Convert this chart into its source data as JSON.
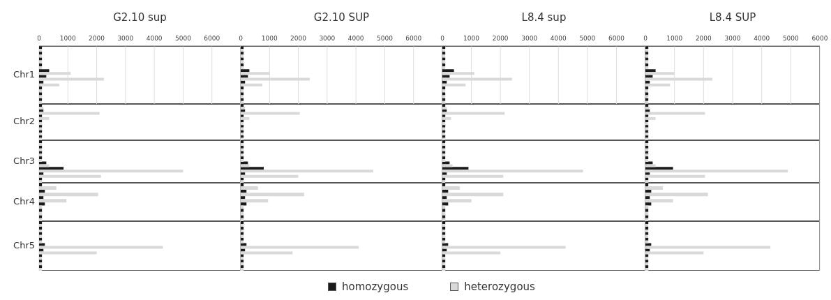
{
  "chart_data": [
    {
      "type": "bar",
      "orientation": "horizontal",
      "title": "G2.10 sup",
      "ylabel": "Chr1",
      "categories": [
        null,
        null,
        null,
        null,
        null,
        null,
        null,
        null,
        null,
        null
      ],
      "series": [
        {
          "color": "#1a1a1a",
          "values": [
            100,
            100,
            100,
            100,
            350,
            250,
            150,
            100,
            100,
            100
          ]
        },
        {
          "color": "#d9d9d9",
          "values": [
            100,
            100,
            100,
            100,
            1100,
            2250,
            700,
            100,
            100,
            100
          ]
        }
      ],
      "xlim": [
        0,
        7000
      ],
      "xticks": [
        0,
        1000,
        2000,
        3000,
        4000,
        5000,
        6000
      ],
      "grid": "x",
      "tick_labels": "x"
    },
    {
      "type": "bar",
      "orientation": "horizontal",
      "title": "G2.10 SUP",
      "categories": [
        null,
        null,
        null,
        null,
        null,
        null,
        null,
        null,
        null,
        null
      ],
      "series": [
        {
          "color": "#1a1a1a",
          "values": [
            100,
            100,
            100,
            100,
            300,
            250,
            150,
            100,
            100,
            100
          ]
        },
        {
          "color": "#d9d9d9",
          "values": [
            100,
            100,
            100,
            100,
            1000,
            2400,
            750,
            100,
            100,
            100
          ]
        }
      ],
      "xlim": [
        0,
        7000
      ],
      "xticks": [
        0,
        1000,
        2000,
        3000,
        4000,
        5000,
        6000
      ],
      "grid": "x",
      "tick_labels": "x"
    },
    {
      "type": "bar",
      "orientation": "horizontal",
      "title": "L8.4 sup",
      "categories": [
        null,
        null,
        null,
        null,
        null,
        null,
        null,
        null,
        null,
        null
      ],
      "series": [
        {
          "color": "#1a1a1a",
          "values": [
            100,
            100,
            100,
            100,
            400,
            250,
            150,
            100,
            100,
            100
          ]
        },
        {
          "color": "#d9d9d9",
          "values": [
            100,
            100,
            100,
            100,
            1100,
            2400,
            800,
            100,
            100,
            100
          ]
        }
      ],
      "xlim": [
        0,
        7000
      ],
      "xticks": [
        0,
        1000,
        2000,
        3000,
        4000,
        5000,
        6000
      ],
      "grid": "x",
      "tick_labels": "x"
    },
    {
      "type": "bar",
      "orientation": "horizontal",
      "title": "L8.4 SUP",
      "categories": [
        null,
        null,
        null,
        null,
        null,
        null,
        null,
        null,
        null,
        null
      ],
      "series": [
        {
          "color": "#1a1a1a",
          "values": [
            100,
            100,
            100,
            100,
            350,
            250,
            150,
            100,
            100,
            100
          ]
        },
        {
          "color": "#d9d9d9",
          "values": [
            100,
            100,
            100,
            100,
            1000,
            2300,
            850,
            100,
            100,
            100
          ]
        }
      ],
      "xlim": [
        0,
        6000
      ],
      "xticks": [
        0,
        1000,
        2000,
        3000,
        4000,
        5000,
        6000
      ],
      "grid": "x",
      "tick_labels": "x"
    },
    {
      "type": "bar",
      "orientation": "horizontal",
      "ylabel": "Chr2",
      "categories": [
        null,
        null,
        null,
        null,
        null,
        null,
        null
      ],
      "series": [
        {
          "color": "#1a1a1a",
          "values": [
            100,
            150,
            100,
            100,
            100,
            100,
            100
          ]
        },
        {
          "color": "#d9d9d9",
          "values": [
            150,
            2100,
            350,
            100,
            100,
            100,
            100
          ]
        }
      ],
      "xlim": [
        0,
        7000
      ],
      "xticks": [
        0,
        1000,
        2000,
        3000,
        4000,
        5000,
        6000
      ],
      "grid": "x",
      "tick_labels": false
    },
    {
      "type": "bar",
      "orientation": "horizontal",
      "categories": [
        null,
        null,
        null,
        null,
        null,
        null,
        null
      ],
      "series": [
        {
          "color": "#1a1a1a",
          "values": [
            100,
            150,
            100,
            100,
            100,
            100,
            100
          ]
        },
        {
          "color": "#d9d9d9",
          "values": [
            150,
            2050,
            300,
            100,
            100,
            100,
            100
          ]
        }
      ],
      "xlim": [
        0,
        7000
      ],
      "xticks": [
        0,
        1000,
        2000,
        3000,
        4000,
        5000,
        6000
      ],
      "grid": "x",
      "tick_labels": false
    },
    {
      "type": "bar",
      "orientation": "horizontal",
      "categories": [
        null,
        null,
        null,
        null,
        null,
        null,
        null
      ],
      "series": [
        {
          "color": "#1a1a1a",
          "values": [
            100,
            150,
            100,
            100,
            100,
            100,
            100
          ]
        },
        {
          "color": "#d9d9d9",
          "values": [
            150,
            2150,
            300,
            100,
            100,
            100,
            100
          ]
        }
      ],
      "xlim": [
        0,
        7000
      ],
      "xticks": [
        0,
        1000,
        2000,
        3000,
        4000,
        5000,
        6000
      ],
      "grid": "x",
      "tick_labels": false
    },
    {
      "type": "bar",
      "orientation": "horizontal",
      "categories": [
        null,
        null,
        null,
        null,
        null,
        null,
        null
      ],
      "series": [
        {
          "color": "#1a1a1a",
          "values": [
            100,
            150,
            100,
            100,
            100,
            100,
            100
          ]
        },
        {
          "color": "#d9d9d9",
          "values": [
            150,
            2050,
            350,
            100,
            100,
            100,
            100
          ]
        }
      ],
      "xlim": [
        0,
        6000
      ],
      "xticks": [
        0,
        1000,
        2000,
        3000,
        4000,
        5000,
        6000
      ],
      "grid": "x",
      "tick_labels": false
    },
    {
      "type": "bar",
      "orientation": "horizontal",
      "ylabel": "Chr3",
      "categories": [
        null,
        null,
        null,
        null,
        null,
        null,
        null,
        null
      ],
      "series": [
        {
          "color": "#1a1a1a",
          "values": [
            100,
            100,
            100,
            100,
            250,
            850,
            150,
            100
          ]
        },
        {
          "color": "#d9d9d9",
          "values": [
            100,
            100,
            100,
            100,
            350,
            5000,
            2150,
            100
          ]
        }
      ],
      "xlim": [
        0,
        7000
      ],
      "xticks": [
        0,
        1000,
        2000,
        3000,
        4000,
        5000,
        6000
      ],
      "grid": "x",
      "tick_labels": false
    },
    {
      "type": "bar",
      "orientation": "horizontal",
      "categories": [
        null,
        null,
        null,
        null,
        null,
        null,
        null,
        null
      ],
      "series": [
        {
          "color": "#1a1a1a",
          "values": [
            100,
            100,
            100,
            100,
            250,
            800,
            150,
            100
          ]
        },
        {
          "color": "#d9d9d9",
          "values": [
            100,
            100,
            100,
            100,
            300,
            4600,
            2000,
            100
          ]
        }
      ],
      "xlim": [
        0,
        7000
      ],
      "xticks": [
        0,
        1000,
        2000,
        3000,
        4000,
        5000,
        6000
      ],
      "grid": "x",
      "tick_labels": false
    },
    {
      "type": "bar",
      "orientation": "horizontal",
      "categories": [
        null,
        null,
        null,
        null,
        null,
        null,
        null,
        null
      ],
      "series": [
        {
          "color": "#1a1a1a",
          "values": [
            100,
            100,
            100,
            100,
            250,
            900,
            150,
            100
          ]
        },
        {
          "color": "#d9d9d9",
          "values": [
            100,
            100,
            100,
            100,
            350,
            4850,
            2100,
            100
          ]
        }
      ],
      "xlim": [
        0,
        7000
      ],
      "xticks": [
        0,
        1000,
        2000,
        3000,
        4000,
        5000,
        6000
      ],
      "grid": "x",
      "tick_labels": false
    },
    {
      "type": "bar",
      "orientation": "horizontal",
      "categories": [
        null,
        null,
        null,
        null,
        null,
        null,
        null,
        null
      ],
      "series": [
        {
          "color": "#1a1a1a",
          "values": [
            100,
            100,
            100,
            100,
            250,
            950,
            150,
            100
          ]
        },
        {
          "color": "#d9d9d9",
          "values": [
            100,
            100,
            100,
            100,
            350,
            4900,
            2050,
            100
          ]
        }
      ],
      "xlim": [
        0,
        6000
      ],
      "xticks": [
        0,
        1000,
        2000,
        3000,
        4000,
        5000,
        6000
      ],
      "grid": "x",
      "tick_labels": false
    },
    {
      "type": "bar",
      "orientation": "horizontal",
      "ylabel": "Chr4",
      "categories": [
        null,
        null,
        null,
        null,
        null,
        null
      ],
      "series": [
        {
          "color": "#1a1a1a",
          "values": [
            100,
            200,
            150,
            200,
            100,
            100
          ]
        },
        {
          "color": "#d9d9d9",
          "values": [
            600,
            2050,
            950,
            100,
            100,
            100
          ]
        }
      ],
      "xlim": [
        0,
        7000
      ],
      "xticks": [
        0,
        1000,
        2000,
        3000,
        4000,
        5000,
        6000
      ],
      "grid": "x",
      "tick_labels": false
    },
    {
      "type": "bar",
      "orientation": "horizontal",
      "categories": [
        null,
        null,
        null,
        null,
        null,
        null
      ],
      "series": [
        {
          "color": "#1a1a1a",
          "values": [
            100,
            200,
            150,
            200,
            100,
            100
          ]
        },
        {
          "color": "#d9d9d9",
          "values": [
            600,
            2200,
            950,
            100,
            100,
            100
          ]
        }
      ],
      "xlim": [
        0,
        7000
      ],
      "xticks": [
        0,
        1000,
        2000,
        3000,
        4000,
        5000,
        6000
      ],
      "grid": "x",
      "tick_labels": false
    },
    {
      "type": "bar",
      "orientation": "horizontal",
      "categories": [
        null,
        null,
        null,
        null,
        null,
        null
      ],
      "series": [
        {
          "color": "#1a1a1a",
          "values": [
            100,
            200,
            150,
            200,
            100,
            100
          ]
        },
        {
          "color": "#d9d9d9",
          "values": [
            600,
            2100,
            1000,
            100,
            100,
            100
          ]
        }
      ],
      "xlim": [
        0,
        7000
      ],
      "xticks": [
        0,
        1000,
        2000,
        3000,
        4000,
        5000,
        6000
      ],
      "grid": "x",
      "tick_labels": false
    },
    {
      "type": "bar",
      "orientation": "horizontal",
      "categories": [
        null,
        null,
        null,
        null,
        null,
        null
      ],
      "series": [
        {
          "color": "#1a1a1a",
          "values": [
            100,
            200,
            150,
            200,
            100,
            100
          ]
        },
        {
          "color": "#d9d9d9",
          "values": [
            600,
            2150,
            950,
            100,
            100,
            100
          ]
        }
      ],
      "xlim": [
        0,
        6000
      ],
      "xticks": [
        0,
        1000,
        2000,
        3000,
        4000,
        5000,
        6000
      ],
      "grid": "x",
      "tick_labels": false
    },
    {
      "type": "bar",
      "orientation": "horizontal",
      "ylabel": "Chr5",
      "categories": [
        null,
        null,
        null,
        null,
        null,
        null,
        null,
        null,
        null
      ],
      "series": [
        {
          "color": "#1a1a1a",
          "values": [
            100,
            100,
            100,
            100,
            200,
            150,
            100,
            100,
            100
          ]
        },
        {
          "color": "#d9d9d9",
          "values": [
            100,
            100,
            100,
            100,
            4300,
            2000,
            100,
            100,
            100
          ]
        }
      ],
      "xlim": [
        0,
        7000
      ],
      "xticks": [
        0,
        1000,
        2000,
        3000,
        4000,
        5000,
        6000
      ],
      "grid": "x",
      "tick_labels": false
    },
    {
      "type": "bar",
      "orientation": "horizontal",
      "categories": [
        null,
        null,
        null,
        null,
        null,
        null,
        null,
        null,
        null
      ],
      "series": [
        {
          "name": "homozygous",
          "color": "#1a1a1a",
          "values": [
            100,
            100,
            100,
            100,
            200,
            150,
            100,
            100,
            100
          ]
        },
        {
          "name": "heterozygous",
          "color": "#d9d9d9",
          "values": [
            100,
            100,
            100,
            100,
            4100,
            1800,
            100,
            100,
            100
          ]
        }
      ],
      "xlim": [
        0,
        7000
      ],
      "xticks": [
        0,
        1000,
        2000,
        3000,
        4000,
        5000,
        6000
      ],
      "grid": "x",
      "tick_labels": false,
      "legend": "bottom"
    },
    {
      "type": "bar",
      "orientation": "horizontal",
      "categories": [
        null,
        null,
        null,
        null,
        null,
        null,
        null,
        null,
        null
      ],
      "series": [
        {
          "color": "#1a1a1a",
          "values": [
            100,
            100,
            100,
            100,
            200,
            150,
            100,
            100,
            100
          ]
        },
        {
          "color": "#d9d9d9",
          "values": [
            100,
            100,
            100,
            100,
            4250,
            2000,
            100,
            100,
            100
          ]
        }
      ],
      "xlim": [
        0,
        7000
      ],
      "xticks": [
        0,
        1000,
        2000,
        3000,
        4000,
        5000,
        6000
      ],
      "grid": "x",
      "tick_labels": false
    },
    {
      "type": "bar",
      "orientation": "horizontal",
      "categories": [
        null,
        null,
        null,
        null,
        null,
        null,
        null,
        null,
        null
      ],
      "series": [
        {
          "color": "#1a1a1a",
          "values": [
            100,
            100,
            100,
            100,
            200,
            150,
            100,
            100,
            100
          ]
        },
        {
          "color": "#d9d9d9",
          "values": [
            100,
            100,
            100,
            100,
            4300,
            2000,
            100,
            100,
            100
          ]
        }
      ],
      "xlim": [
        0,
        6000
      ],
      "xticks": [
        0,
        1000,
        2000,
        3000,
        4000,
        5000,
        6000
      ],
      "grid": "x",
      "tick_labels": false
    }
  ]
}
